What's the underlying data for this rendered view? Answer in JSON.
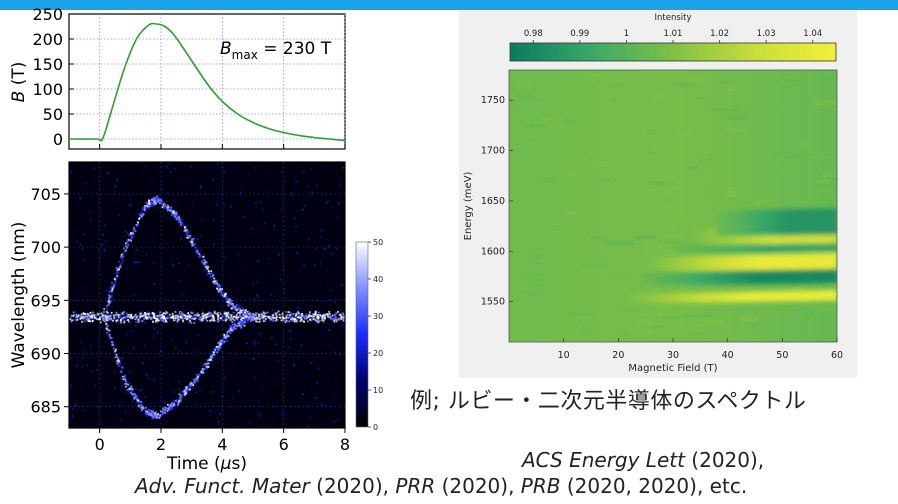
{
  "accent_color": "#1aa3e8",
  "chart_data": [
    {
      "type": "line",
      "title": "",
      "ylabel": "B (T)",
      "ylabel_main": "B",
      "ylabel_unit": "(T)",
      "xlabel": "",
      "xlim": [
        -1,
        8
      ],
      "ylim": [
        -20,
        250
      ],
      "yticks": [
        "0",
        "50",
        "100",
        "150",
        "200",
        "250"
      ],
      "ytick_values": [
        0,
        50,
        100,
        150,
        200,
        250
      ],
      "xgrid_values": [
        0,
        2,
        4,
        6,
        8
      ],
      "grid": true,
      "annotation_main": "B",
      "annotation_sub": "max",
      "annotation_rest": " = 230 T",
      "series": [
        {
          "color": "#2ca02c",
          "x": [
            -1.0,
            -0.1,
            0.1,
            0.4,
            0.8,
            1.2,
            1.6,
            1.85,
            2.1,
            2.4,
            2.8,
            3.2,
            3.6,
            4.0,
            4.5,
            5.0,
            5.5,
            6.0,
            6.5,
            7.0,
            7.5,
            8.0
          ],
          "y": [
            0,
            0,
            1,
            60,
            140,
            200,
            228,
            230,
            226,
            210,
            175,
            138,
            103,
            75,
            50,
            33,
            21,
            13,
            7,
            3,
            0,
            -3
          ]
        }
      ]
    },
    {
      "type": "heatmap",
      "title": "",
      "xlabel": "Time (μs)",
      "xlabel_main": "Time (",
      "xlabel_mu": "μ",
      "xlabel_end": "s)",
      "ylabel": "Wavelength (nm)",
      "xlim": [
        -1,
        8
      ],
      "ylim": [
        683,
        708
      ],
      "xticks": [
        "0",
        "2",
        "4",
        "6",
        "8"
      ],
      "xtick_values": [
        0,
        2,
        4,
        6,
        8
      ],
      "yticks": [
        "685",
        "690",
        "695",
        "700",
        "705"
      ],
      "ytick_values": [
        685,
        690,
        695,
        700,
        705
      ],
      "colorbar": {
        "min": 0,
        "max": 50,
        "ticks": [
          "0",
          "10",
          "20",
          "30",
          "40",
          "50"
        ],
        "tick_values": [
          0,
          10,
          20,
          30,
          40,
          50
        ],
        "colors": [
          "#000000",
          "#00006e",
          "#1a2cff",
          "#8090ff",
          "#ffffff"
        ]
      },
      "features": [
        {
          "name": "central line",
          "x": [
            -1,
            8
          ],
          "y": [
            693.5,
            693.5
          ]
        },
        {
          "name": "upper branch",
          "x": [
            0.1,
            0.8,
            1.5,
            1.85,
            2.5,
            3.2,
            3.8,
            4.3,
            5.0
          ],
          "y": [
            693.5,
            700,
            704,
            704.6,
            703,
            699.5,
            696.5,
            694.5,
            693.5
          ]
        },
        {
          "name": "lower branch",
          "x": [
            0.1,
            0.8,
            1.5,
            1.85,
            2.5,
            3.2,
            3.8,
            4.3,
            5.0
          ],
          "y": [
            693.5,
            687.5,
            684.5,
            684.2,
            685.5,
            688,
            690.5,
            692.5,
            693.5
          ]
        }
      ]
    },
    {
      "type": "heatmap",
      "title": "",
      "xlabel": "Magnetic Field (T)",
      "ylabel": "Energy (meV)",
      "xlim": [
        0,
        60
      ],
      "ylim": [
        1510,
        1780
      ],
      "xticks": [
        "10",
        "20",
        "30",
        "40",
        "50",
        "60"
      ],
      "xtick_values": [
        10,
        20,
        30,
        40,
        50,
        60
      ],
      "yticks": [
        "1550",
        "1600",
        "1650",
        "1700",
        "1750"
      ],
      "ytick_values": [
        1550,
        1600,
        1650,
        1700,
        1750
      ],
      "colorbar": {
        "label": "Intensity",
        "min": 0.975,
        "max": 1.045,
        "ticks": [
          "0.98",
          "0.99",
          "1",
          "1.01",
          "1.02",
          "1.03",
          "1.04"
        ],
        "tick_values": [
          0.98,
          0.99,
          1.0,
          1.01,
          1.02,
          1.03,
          1.04
        ],
        "colors": [
          "#0a7a5f",
          "#3aa868",
          "#7fc046",
          "#c8dc3a",
          "#f3f03a"
        ]
      },
      "features": [
        {
          "name": "bright band 1",
          "start_field": 20,
          "energy_start": 1548,
          "energy_end": 1557,
          "peak_intensity": 1.04
        },
        {
          "name": "dark band 1",
          "start_field": 24,
          "energy_start": 1566,
          "energy_end": 1578,
          "peak_intensity": 0.98
        },
        {
          "name": "bright band 2",
          "start_field": 24,
          "energy_start": 1580,
          "energy_end": 1594,
          "peak_intensity": 1.04
        },
        {
          "name": "dark band 2",
          "start_field": 30,
          "energy_start": 1598,
          "energy_end": 1608,
          "peak_intensity": 0.99
        },
        {
          "name": "bright band 3",
          "start_field": 32,
          "energy_start": 1606,
          "energy_end": 1622,
          "peak_intensity": 1.03
        },
        {
          "name": "dark band 3",
          "start_field": 38,
          "energy_start": 1615,
          "energy_end": 1640,
          "peak_intensity": 0.985
        }
      ]
    }
  ],
  "caption": "例; ルビー・二次元半導体のスペクトル",
  "references": {
    "ref1_journal": "ACS Energy Lett",
    "ref1_year": " (2020),",
    "ref2_journal_a": "Adv. Funct. Mater",
    "ref2_year_a": " (2020), ",
    "ref2_journal_b": "PRR",
    "ref2_year_b": " (2020), ",
    "ref2_journal_c": "PRB",
    "ref2_year_c": " (2020, 2020), etc."
  }
}
